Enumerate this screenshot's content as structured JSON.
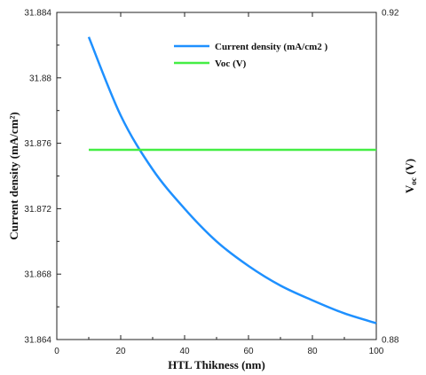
{
  "chart_data": {
    "type": "line",
    "xlabel": "HTL Thikness (nm)",
    "ylabel_left": "Current density (mA/cm²)",
    "ylabel_right": "V_oc (V)",
    "ylabel_right_main": "V",
    "ylabel_right_sub": "oc",
    "ylabel_right_unit": " (V)",
    "xlim": [
      0,
      100
    ],
    "ylim_left": [
      31.864,
      31.884
    ],
    "ylim_right": [
      0.88,
      0.92
    ],
    "x_ticks": [
      "0",
      "20",
      "40",
      "60",
      "80",
      "100"
    ],
    "y_left_ticks": [
      "31.864",
      "31.868",
      "31.872",
      "31.876",
      "31.88",
      "31.884"
    ],
    "y_right_ticks": [
      "0.88",
      "0.92"
    ],
    "legend_position": "top-right",
    "series": [
      {
        "name": "Current density (mA/cm2 )",
        "axis": "left",
        "color": "#1E90FF",
        "x": [
          10,
          20,
          30,
          40,
          50,
          60,
          70,
          80,
          90,
          100
        ],
        "y": [
          31.8825,
          31.8777,
          31.8744,
          31.872,
          31.87,
          31.8685,
          31.8673,
          31.8664,
          31.8656,
          31.865
        ]
      },
      {
        "name": "Voc (V)",
        "axis": "right",
        "color": "#44EE44",
        "x": [
          10,
          100
        ],
        "y": [
          0.9032,
          0.9032
        ]
      }
    ]
  }
}
